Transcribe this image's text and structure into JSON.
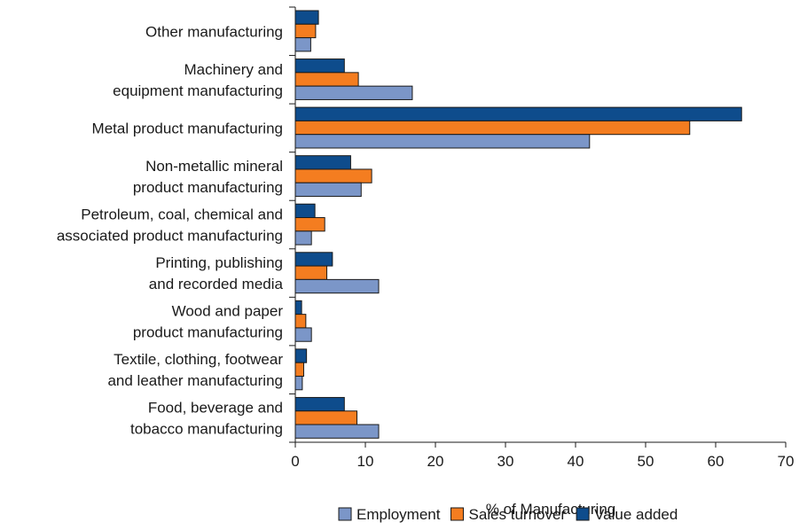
{
  "chart_data": {
    "type": "bar",
    "orientation": "horizontal",
    "xlabel": "% of Manufacturing",
    "ylabel": "",
    "xlim": [
      0,
      70
    ],
    "xticks": [
      "0",
      "10",
      "20",
      "30",
      "40",
      "50",
      "60",
      "70"
    ],
    "grid": false,
    "legend_position": "bottom",
    "categories": [
      {
        "lines": [
          "Other manufacturing"
        ]
      },
      {
        "lines": [
          "Machinery and",
          "equipment manufacturing"
        ]
      },
      {
        "lines": [
          "Metal product manufacturing"
        ]
      },
      {
        "lines": [
          "Non-metallic mineral",
          "product manufacturing"
        ]
      },
      {
        "lines": [
          "Petroleum, coal, chemical and",
          "associated product manufacturing"
        ]
      },
      {
        "lines": [
          "Printing, publishing",
          "and recorded media"
        ]
      },
      {
        "lines": [
          "Wood and paper",
          "product manufacturing"
        ]
      },
      {
        "lines": [
          "Textile, clothing, footwear",
          "and leather manufacturing"
        ]
      },
      {
        "lines": [
          "Food, beverage and",
          "tobacco manufacturing"
        ]
      }
    ],
    "series": [
      {
        "name": "Value added",
        "color": "#0e4c8c",
        "values": [
          3.3,
          7.0,
          63.7,
          7.9,
          2.8,
          5.3,
          0.9,
          1.6,
          7.0
        ]
      },
      {
        "name": "Sales turnover",
        "color": "#f47d20",
        "values": [
          2.9,
          9.0,
          56.3,
          10.9,
          4.2,
          4.5,
          1.5,
          1.2,
          8.8
        ]
      },
      {
        "name": "Employment",
        "color": "#7b96c8",
        "values": [
          2.2,
          16.7,
          42.0,
          9.4,
          2.3,
          11.9,
          2.3,
          1.0,
          11.9
        ]
      }
    ],
    "legend_order": [
      "Employment",
      "Sales turnover",
      "Value added"
    ]
  }
}
